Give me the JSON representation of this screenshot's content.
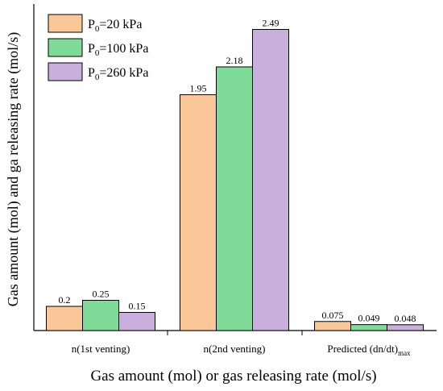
{
  "chart_data": {
    "type": "bar",
    "title": "",
    "xlabel": "Gas amount (mol) or gas releasing rate (mol/s)",
    "ylabel": "Gas amount (mol) and ga releasing rate (mol/s)",
    "ylim": [
      0,
      2.7
    ],
    "grid": false,
    "legend_position": "top-left",
    "categories": [
      {
        "text": "n(1st venting)",
        "sub": ""
      },
      {
        "text": "n(2nd venting)",
        "sub": ""
      },
      {
        "text": "Predicted (dn/dt)",
        "sub": "max"
      }
    ],
    "series": [
      {
        "prefix": "P",
        "sub": "0",
        "suffix": "=20 kPa",
        "color": "#FAC898",
        "values": [
          0.2,
          1.95,
          0.075
        ],
        "labels": [
          "0.2",
          "1.95",
          "0.075"
        ]
      },
      {
        "prefix": "P",
        "sub": "0",
        "suffix": "=100 kPa",
        "color": "#7FDB98",
        "values": [
          0.25,
          2.18,
          0.049
        ],
        "labels": [
          "0.25",
          "2.18",
          "0.049"
        ]
      },
      {
        "prefix": "P",
        "sub": "0",
        "suffix": "=260 kPa",
        "color": "#C9B0DC",
        "values": [
          0.15,
          2.49,
          0.048
        ],
        "labels": [
          "0.15",
          "2.49",
          "0.048"
        ]
      }
    ]
  }
}
